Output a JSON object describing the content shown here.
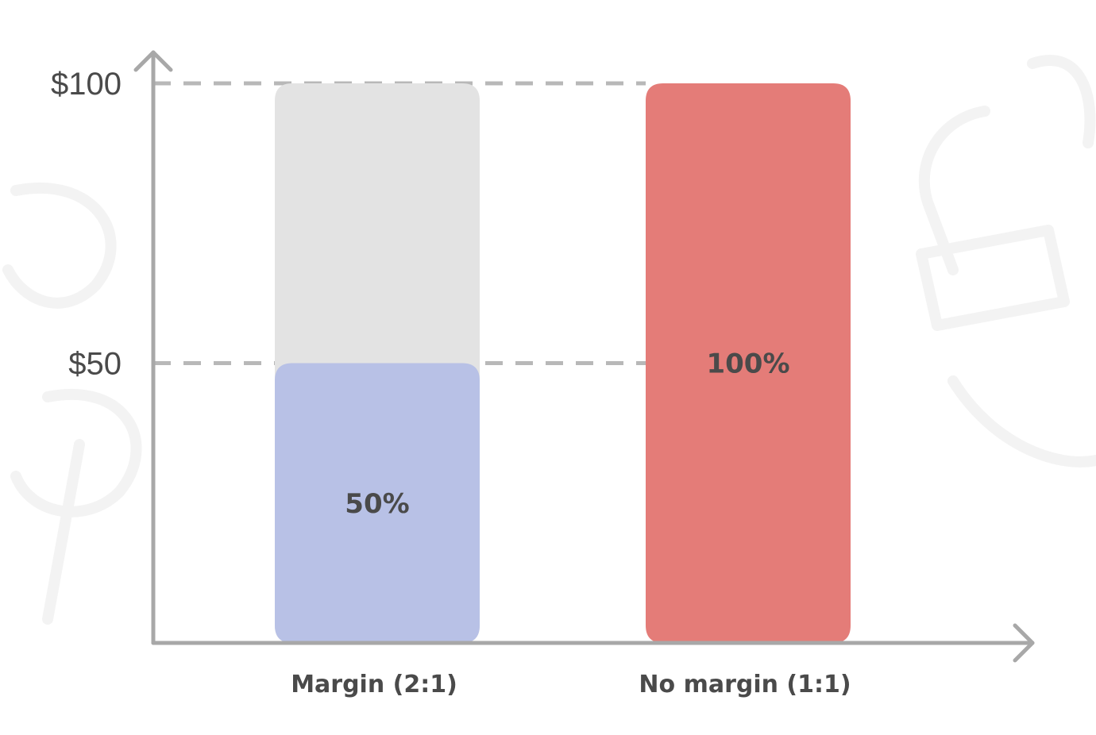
{
  "colors": {
    "axis": "#a8a8a8",
    "gridline": "#b8b8b8",
    "background_bar": "#e3e3e3",
    "margin_fill": "#b8c1e6",
    "no_margin_fill": "#e47c78",
    "text": "#4a4a4a"
  },
  "chart_data": {
    "type": "bar",
    "categories": [
      "Margin (2:1)",
      "No margin (1:1)"
    ],
    "values": [
      50,
      100
    ],
    "capacity": [
      100,
      100
    ],
    "value_labels": [
      "50%",
      "100%"
    ],
    "y_ticks": [
      {
        "value": 50,
        "label": "$50"
      },
      {
        "value": 100,
        "label": "$100"
      }
    ],
    "ylim": [
      0,
      100
    ],
    "title": "",
    "xlabel": "",
    "ylabel": "",
    "grid": "dashed reference lines at $50 and $100",
    "legend": "none"
  }
}
